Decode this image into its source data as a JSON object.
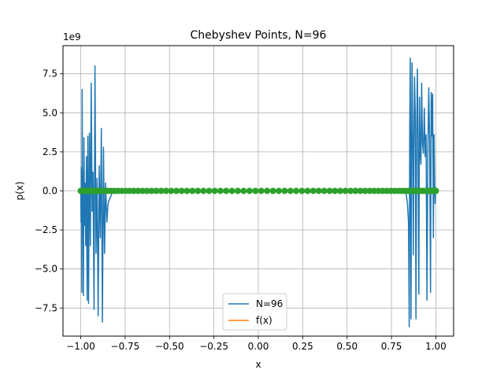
{
  "chart_data": {
    "type": "line",
    "title": "Chebyshev Points, N=96",
    "xlabel": "x",
    "ylabel": "p(x)",
    "offset_label": "1e9",
    "xlim": [
      -1.1,
      1.1
    ],
    "ylim": [
      -9.3,
      9.3
    ],
    "grid": true,
    "legend_position": "bottom-center",
    "x_ticks": [
      -1.0,
      -0.75,
      -0.5,
      -0.25,
      0.0,
      0.25,
      0.5,
      0.75,
      1.0
    ],
    "x_tick_labels": [
      "−1.00",
      "−0.75",
      "−0.50",
      "−0.25",
      "0.00",
      "0.25",
      "0.50",
      "0.75",
      "1.00"
    ],
    "y_ticks": [
      -7.5,
      -5.0,
      -2.5,
      0.0,
      2.5,
      5.0,
      7.5
    ],
    "y_tick_labels": [
      "−7.5",
      "−5.0",
      "−2.5",
      "0.0",
      "2.5",
      "5.0",
      "7.5"
    ],
    "colors": {
      "series1": "#1f77b4",
      "series2": "#ff7f0e",
      "points": "#2ca02c",
      "grid": "#b0b0b0"
    },
    "series": [
      {
        "name": "N=96",
        "color": "#1f77b4",
        "x": [
          -1.0,
          -0.998,
          -0.996,
          -0.994,
          -0.992,
          -0.99,
          -0.988,
          -0.985,
          -0.982,
          -0.979,
          -0.976,
          -0.972,
          -0.968,
          -0.964,
          -0.96,
          -0.956,
          -0.951,
          -0.946,
          -0.941,
          -0.936,
          -0.931,
          -0.925,
          -0.92,
          -0.914,
          -0.908,
          -0.902,
          -0.896,
          -0.89,
          -0.884,
          -0.878,
          -0.872,
          -0.866,
          -0.86,
          -0.853,
          -0.846,
          -0.84,
          -0.833,
          -0.826,
          -0.82,
          -0.81,
          -0.8,
          0.8,
          0.82,
          0.833,
          0.84,
          0.846,
          0.85,
          0.853,
          0.856,
          0.86,
          0.863,
          0.866,
          0.87,
          0.873,
          0.876,
          0.88,
          0.884,
          0.888,
          0.892,
          0.896,
          0.9,
          0.904,
          0.908,
          0.912,
          0.916,
          0.92,
          0.925,
          0.93,
          0.935,
          0.94,
          0.945,
          0.95,
          0.955,
          0.96,
          0.965,
          0.97,
          0.974,
          0.978,
          0.982,
          0.986,
          0.99,
          0.993,
          0.996,
          0.998,
          1.0
        ],
        "values": [
          0,
          -2.0,
          1.5,
          -6.5,
          6.5,
          -0.8,
          1.3,
          -6.7,
          3.4,
          -2.2,
          0.5,
          -3.5,
          2.2,
          -7.0,
          3.5,
          -7.2,
          3.7,
          -3.5,
          6.9,
          -1.3,
          1.2,
          -7.6,
          8.0,
          -4.0,
          0.8,
          -8.0,
          1.6,
          -3.0,
          4.0,
          -8.4,
          2.8,
          -4.0,
          0.5,
          -2.0,
          -0.8,
          -0.6,
          -0.4,
          -0.2,
          -0.1,
          0,
          0,
          0,
          0,
          -0.2,
          -0.8,
          -2.0,
          -8.7,
          4.0,
          8.5,
          -8.2,
          1.9,
          8.2,
          3.0,
          -4.1,
          2.5,
          7.3,
          5.0,
          -8.2,
          3.5,
          7.8,
          2.5,
          -6.6,
          6.0,
          2.5,
          1.7,
          6.9,
          3.0,
          2.4,
          5.3,
          2.2,
          3.6,
          -7.0,
          2.5,
          6.6,
          3.2,
          -6.5,
          6.3,
          3.5,
          6.2,
          -3.0,
          3.6,
          0.5,
          -0.8,
          0.2,
          0
        ]
      },
      {
        "name": "f(x)",
        "color": "#ff7f0e",
        "x": [
          -1.0,
          1.0
        ],
        "values": [
          0,
          0
        ]
      }
    ],
    "points": {
      "color": "#2ca02c",
      "count": 96,
      "y_value": 0
    }
  }
}
